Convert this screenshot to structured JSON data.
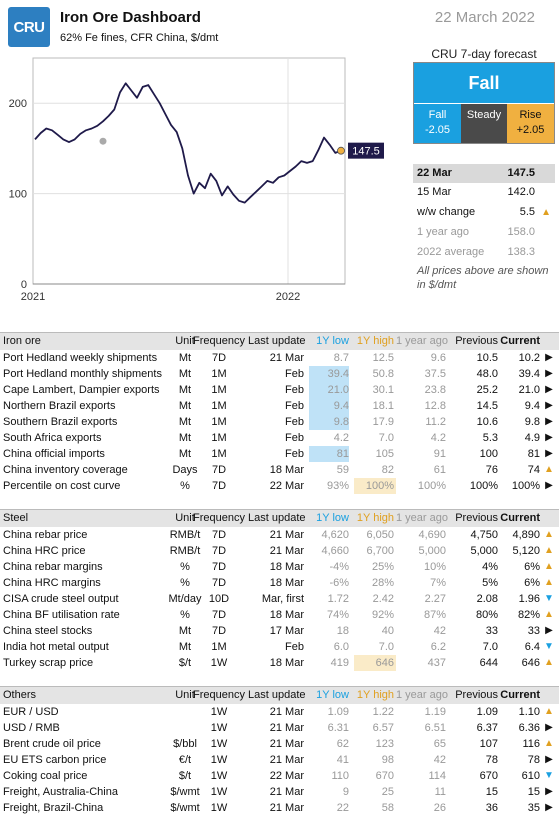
{
  "header": {
    "logo": "CRU",
    "title": "Iron Ore Dashboard",
    "subtitle": "62% Fe fines, CFR China, $/dmt",
    "date": "22 March 2022"
  },
  "chart_data": {
    "type": "line",
    "x_ticks": [
      "2021",
      "2022"
    ],
    "y_ticks": [
      0,
      100,
      200
    ],
    "ylim": [
      0,
      250
    ],
    "series": [
      {
        "values": [
          160,
          167,
          172,
          170,
          165,
          160,
          157,
          160,
          166,
          170,
          172,
          175,
          180,
          186,
          193,
          212,
          222,
          214,
          206,
          218,
          220,
          210,
          200,
          188,
          176,
          168,
          150,
          120,
          100,
          112,
          106,
          122,
          114,
          98,
          108,
          99,
          92,
          90,
          96,
          102,
          108,
          114,
          112,
          118,
          120,
          125,
          130,
          136,
          134,
          136,
          148,
          162,
          154,
          145,
          147.5
        ]
      }
    ],
    "marker_grey_value": 158,
    "last_label": "147.5",
    "line_color": "#1f1a4a"
  },
  "forecast": {
    "title": "CRU 7-day forecast",
    "main": "Fall",
    "fall_label": "Fall",
    "fall_value": "-2.05",
    "steady_label": "Steady",
    "rise_label": "Rise",
    "rise_value": "+2.05"
  },
  "prices": [
    {
      "label": "22 Mar",
      "value": "147.5",
      "arrow": ""
    },
    {
      "label": "15 Mar",
      "value": "142.0",
      "arrow": ""
    },
    {
      "label": "w/w change",
      "value": "5.5",
      "arrow": "▲"
    },
    {
      "label": "1 year ago",
      "value": "158.0",
      "arrow": ""
    },
    {
      "label": "2022 average",
      "value": "138.3",
      "arrow": ""
    }
  ],
  "price_note": "All prices above are shown in $/dmt",
  "columns": {
    "unit": "Unit",
    "freq": "Frequency",
    "update": "Last update",
    "low": "1Y low",
    "high": "1Y high",
    "ya": "1 year ago",
    "prev": "Previous",
    "cur": "Current"
  },
  "sections": [
    {
      "title": "Iron ore",
      "rows": [
        {
          "name": "Port Hedland weekly shipments",
          "unit": "Mt",
          "freq": "7D",
          "update": "21 Mar",
          "low": "8.7",
          "high": "12.5",
          "ya": "9.6",
          "prev": "10.5",
          "cur": "10.2",
          "arrow": "▶",
          "hl": ""
        },
        {
          "name": "Port Hedland monthly shipments",
          "unit": "Mt",
          "freq": "1M",
          "update": "Feb",
          "low": "39.4",
          "high": "50.8",
          "ya": "37.5",
          "prev": "48.0",
          "cur": "39.4",
          "arrow": "▶",
          "hl": "low"
        },
        {
          "name": "Cape Lambert, Dampier exports",
          "unit": "Mt",
          "freq": "1M",
          "update": "Feb",
          "low": "21.0",
          "high": "30.1",
          "ya": "23.8",
          "prev": "25.2",
          "cur": "21.0",
          "arrow": "▶",
          "hl": "low"
        },
        {
          "name": "Northern Brazil exports",
          "unit": "Mt",
          "freq": "1M",
          "update": "Feb",
          "low": "9.4",
          "high": "18.1",
          "ya": "12.8",
          "prev": "14.5",
          "cur": "9.4",
          "arrow": "▶",
          "hl": "low"
        },
        {
          "name": "Southern Brazil exports",
          "unit": "Mt",
          "freq": "1M",
          "update": "Feb",
          "low": "9.8",
          "high": "17.9",
          "ya": "11.2",
          "prev": "10.6",
          "cur": "9.8",
          "arrow": "▶",
          "hl": "low"
        },
        {
          "name": "South Africa exports",
          "unit": "Mt",
          "freq": "1M",
          "update": "Feb",
          "low": "4.2",
          "high": "7.0",
          "ya": "4.2",
          "prev": "5.3",
          "cur": "4.9",
          "arrow": "▶",
          "hl": ""
        },
        {
          "name": "China official imports",
          "unit": "Mt",
          "freq": "1M",
          "update": "Feb",
          "low": "81",
          "high": "105",
          "ya": "91",
          "prev": "100",
          "cur": "81",
          "arrow": "▶",
          "hl": "low"
        },
        {
          "name": "China inventory coverage",
          "unit": "Days",
          "freq": "7D",
          "update": "18 Mar",
          "low": "59",
          "high": "82",
          "ya": "61",
          "prev": "76",
          "cur": "74",
          "arrow": "▲",
          "hl": ""
        },
        {
          "name": "Percentile on cost curve",
          "unit": "%",
          "freq": "7D",
          "update": "22 Mar",
          "low": "93%",
          "high": "100%",
          "ya": "100%",
          "prev": "100%",
          "cur": "100%",
          "arrow": "▶",
          "hl": "high"
        }
      ]
    },
    {
      "title": "Steel",
      "rows": [
        {
          "name": "China rebar price",
          "unit": "RMB/t",
          "freq": "7D",
          "update": "21 Mar",
          "low": "4,620",
          "high": "6,050",
          "ya": "4,690",
          "prev": "4,750",
          "cur": "4,890",
          "arrow": "▲",
          "hl": ""
        },
        {
          "name": "China HRC price",
          "unit": "RMB/t",
          "freq": "7D",
          "update": "21 Mar",
          "low": "4,660",
          "high": "6,700",
          "ya": "5,000",
          "prev": "5,000",
          "cur": "5,120",
          "arrow": "▲",
          "hl": ""
        },
        {
          "name": "China rebar margins",
          "unit": "%",
          "freq": "7D",
          "update": "18 Mar",
          "low": "-4%",
          "high": "25%",
          "ya": "10%",
          "prev": "4%",
          "cur": "6%",
          "arrow": "▲",
          "hl": ""
        },
        {
          "name": "China HRC margins",
          "unit": "%",
          "freq": "7D",
          "update": "18 Mar",
          "low": "-6%",
          "high": "28%",
          "ya": "7%",
          "prev": "5%",
          "cur": "6%",
          "arrow": "▲",
          "hl": ""
        },
        {
          "name": "CISA crude steel output",
          "unit": "Mt/day",
          "freq": "10D",
          "update": "Mar, first",
          "low": "1.72",
          "high": "2.42",
          "ya": "2.27",
          "prev": "2.08",
          "cur": "1.96",
          "arrow": "▼",
          "hl": ""
        },
        {
          "name": "China BF utilisation rate",
          "unit": "%",
          "freq": "7D",
          "update": "18 Mar",
          "low": "74%",
          "high": "92%",
          "ya": "87%",
          "prev": "80%",
          "cur": "82%",
          "arrow": "▲",
          "hl": ""
        },
        {
          "name": "China steel stocks",
          "unit": "Mt",
          "freq": "7D",
          "update": "17 Mar",
          "low": "18",
          "high": "40",
          "ya": "42",
          "prev": "33",
          "cur": "33",
          "arrow": "▶",
          "hl": ""
        },
        {
          "name": "India hot metal output",
          "unit": "Mt",
          "freq": "1M",
          "update": "Feb",
          "low": "6.0",
          "high": "7.0",
          "ya": "6.2",
          "prev": "7.0",
          "cur": "6.4",
          "arrow": "▼",
          "hl": ""
        },
        {
          "name": "Turkey scrap price",
          "unit": "$/t",
          "freq": "1W",
          "update": "18 Mar",
          "low": "419",
          "high": "646",
          "ya": "437",
          "prev": "644",
          "cur": "646",
          "arrow": "▲",
          "hl": "high"
        }
      ]
    },
    {
      "title": "Others",
      "rows": [
        {
          "name": "EUR / USD",
          "unit": "",
          "freq": "1W",
          "update": "21 Mar",
          "low": "1.09",
          "high": "1.22",
          "ya": "1.19",
          "prev": "1.09",
          "cur": "1.10",
          "arrow": "▲",
          "hl": ""
        },
        {
          "name": "USD / RMB",
          "unit": "",
          "freq": "1W",
          "update": "21 Mar",
          "low": "6.31",
          "high": "6.57",
          "ya": "6.51",
          "prev": "6.37",
          "cur": "6.36",
          "arrow": "▶",
          "hl": ""
        },
        {
          "name": "Brent crude oil price",
          "unit": "$/bbl",
          "freq": "1W",
          "update": "21 Mar",
          "low": "62",
          "high": "123",
          "ya": "65",
          "prev": "107",
          "cur": "116",
          "arrow": "▲",
          "hl": ""
        },
        {
          "name": "EU ETS carbon price",
          "unit": "€/t",
          "freq": "1W",
          "update": "21 Mar",
          "low": "41",
          "high": "98",
          "ya": "42",
          "prev": "78",
          "cur": "78",
          "arrow": "▶",
          "hl": ""
        },
        {
          "name": "Coking coal price",
          "unit": "$/t",
          "freq": "1W",
          "update": "22 Mar",
          "low": "110",
          "high": "670",
          "ya": "114",
          "prev": "670",
          "cur": "610",
          "arrow": "▼",
          "hl": ""
        },
        {
          "name": "Freight, Australia-China",
          "unit": "$/wmt",
          "freq": "1W",
          "update": "21 Mar",
          "low": "9",
          "high": "25",
          "ya": "11",
          "prev": "15",
          "cur": "15",
          "arrow": "▶",
          "hl": ""
        },
        {
          "name": "Freight, Brazil-China",
          "unit": "$/wmt",
          "freq": "1W",
          "update": "21 Mar",
          "low": "22",
          "high": "58",
          "ya": "26",
          "prev": "36",
          "cur": "35",
          "arrow": "▶",
          "hl": ""
        }
      ]
    }
  ],
  "colors": {
    "up": "#e0a020",
    "down": "#1aa0e0",
    "flat": "#111111",
    "low_hl": "#bfe2f7",
    "high_hl": "#faebc8"
  }
}
